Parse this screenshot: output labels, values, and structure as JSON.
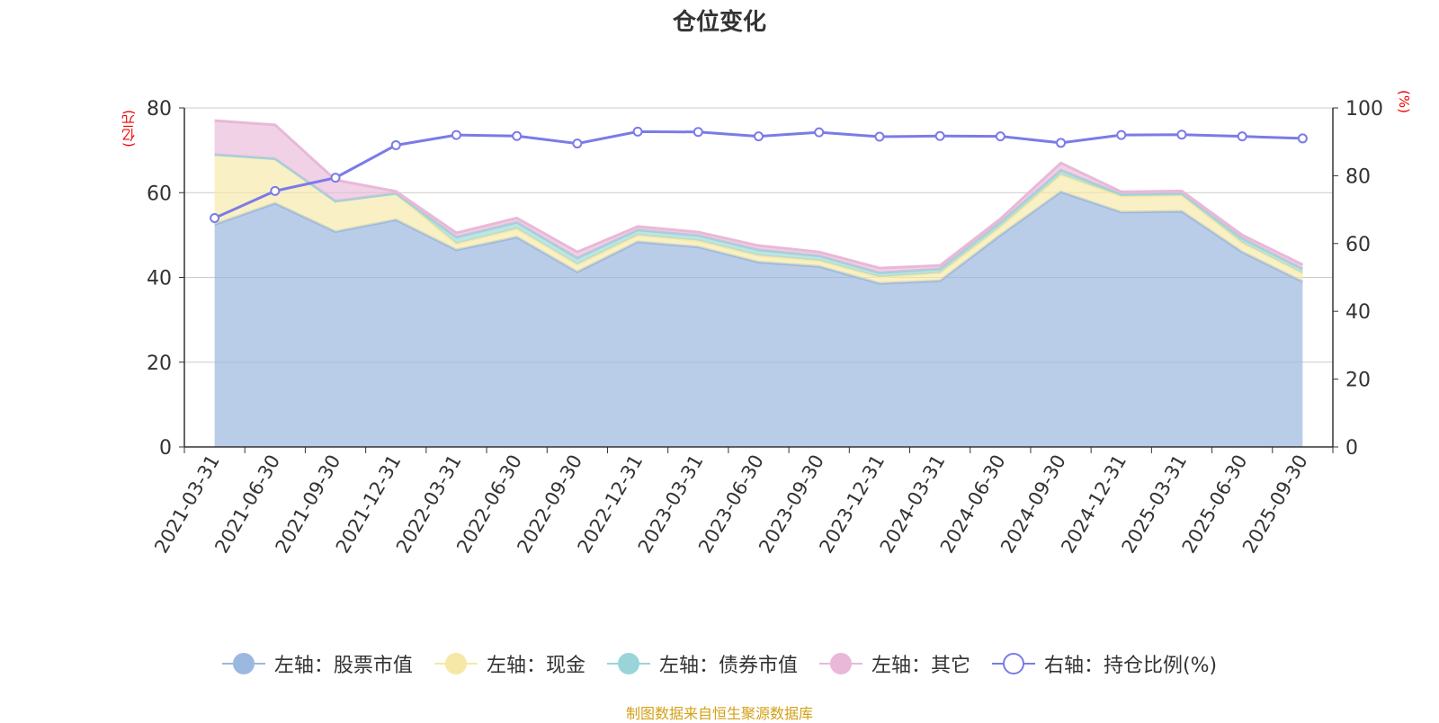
{
  "chart_data": {
    "type": "area",
    "title": "仓位变化",
    "left_axis_unit": "(亿元)",
    "right_axis_unit": "(%)",
    "x": [
      "2021-03-31",
      "2021-06-30",
      "2021-09-30",
      "2021-12-31",
      "2022-03-31",
      "2022-06-30",
      "2022-09-30",
      "2022-12-31",
      "2023-03-31",
      "2023-06-30",
      "2023-09-30",
      "2023-12-31",
      "2024-03-31",
      "2024-06-30",
      "2024-09-30",
      "2024-12-31",
      "2025-03-31",
      "2025-06-30",
      "2025-09-30"
    ],
    "ylim_left": [
      0,
      80
    ],
    "yticks_left": [
      0,
      20,
      40,
      60,
      80
    ],
    "ylim_right": [
      0,
      100
    ],
    "yticks_right": [
      0,
      20,
      40,
      60,
      80,
      100
    ],
    "grid": true,
    "legend_position": "bottom",
    "series": [
      {
        "name": "左轴：股票市值",
        "axis": "left",
        "stacked": true,
        "color": "#9bb8e0",
        "values": [
          52.5,
          57.5,
          50.8,
          53.6,
          46.5,
          49.5,
          41.3,
          48.4,
          47.2,
          43.6,
          42.6,
          38.6,
          39.2,
          50.0,
          60.2,
          55.4,
          55.6,
          46.0,
          39.0
        ]
      },
      {
        "name": "左轴：现金",
        "axis": "left",
        "stacked": true,
        "color": "#f6e8a6",
        "values": [
          16.5,
          10.5,
          7.2,
          6.2,
          1.5,
          2.0,
          1.8,
          1.6,
          1.5,
          1.6,
          1.4,
          1.5,
          1.9,
          2.0,
          4.1,
          3.8,
          3.8,
          2.2,
          2.0
        ]
      },
      {
        "name": "左轴：债券市值",
        "axis": "left",
        "stacked": true,
        "color": "#99d5d8",
        "values": [
          0.0,
          0.0,
          0.0,
          0.0,
          1.5,
          1.5,
          1.5,
          1.2,
          1.2,
          1.3,
          1.1,
          1.0,
          0.9,
          1.0,
          1.0,
          0.4,
          0.4,
          1.0,
          1.0
        ]
      },
      {
        "name": "左轴：其它",
        "axis": "left",
        "stacked": true,
        "color": "#e9b8d8",
        "values": [
          8.0,
          8.0,
          5.0,
          0.5,
          1.0,
          1.0,
          1.4,
          0.8,
          0.8,
          1.0,
          0.9,
          1.1,
          0.8,
          0.8,
          1.7,
          0.6,
          0.6,
          0.8,
          1.0
        ]
      },
      {
        "name": "右轴：持仓比例(%)",
        "axis": "right",
        "type": "line",
        "color": "#7b7be8",
        "values": [
          67.5,
          75.5,
          79.4,
          89.0,
          92.0,
          91.7,
          89.5,
          93.0,
          92.9,
          91.6,
          92.8,
          91.5,
          91.7,
          91.6,
          89.7,
          92.0,
          92.1,
          91.6,
          91.0
        ]
      }
    ]
  },
  "source_text": "制图数据来自恒生聚源数据库"
}
